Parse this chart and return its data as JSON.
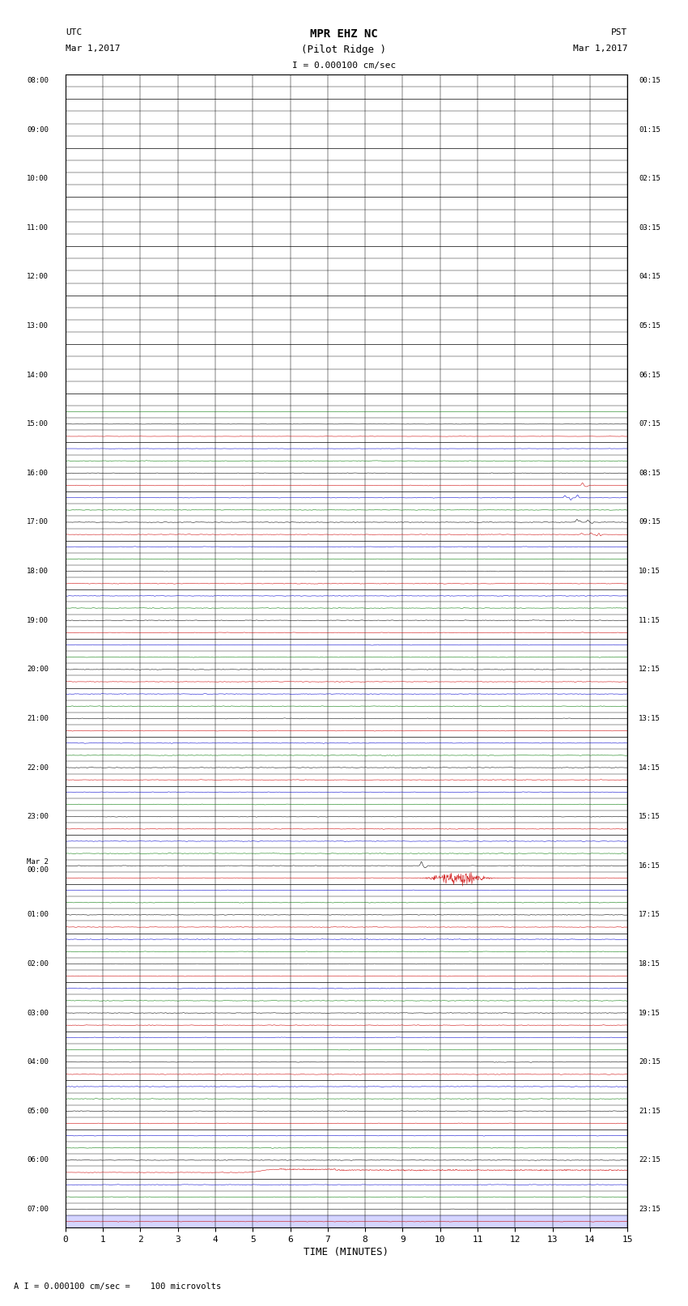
{
  "title_line1": "MPR EHZ NC",
  "title_line2": "(Pilot Ridge )",
  "scale_text": "I = 0.000100 cm/sec",
  "left_label_line1": "UTC",
  "left_label_line2": "Mar 1,2017",
  "right_label_line1": "PST",
  "right_label_line2": "Mar 1,2017",
  "bottom_label": "TIME (MINUTES)",
  "footer_text": "A I = 0.000100 cm/sec =    100 microvolts",
  "xmin": 0,
  "xmax": 15,
  "bg_color": "#ffffff",
  "trace_colors": [
    "#000000",
    "#cc0000",
    "#0000cc",
    "#007700"
  ],
  "fig_width": 8.5,
  "fig_height": 16.13,
  "num_traces": 94,
  "silent_rows": 27,
  "noise_amp_tiny": 0.025,
  "noise_amp_small": 0.045,
  "utc_labels_hourly": [
    [
      "08:00",
      0
    ],
    [
      "09:00",
      4
    ],
    [
      "10:00",
      8
    ],
    [
      "11:00",
      12
    ],
    [
      "12:00",
      16
    ],
    [
      "13:00",
      20
    ],
    [
      "14:00",
      24
    ],
    [
      "15:00",
      28
    ],
    [
      "16:00",
      32
    ],
    [
      "17:00",
      36
    ],
    [
      "18:00",
      40
    ],
    [
      "19:00",
      44
    ],
    [
      "20:00",
      48
    ],
    [
      "21:00",
      52
    ],
    [
      "22:00",
      56
    ],
    [
      "23:00",
      60
    ],
    [
      "Mar 2\n00:00",
      64
    ],
    [
      "01:00",
      68
    ],
    [
      "02:00",
      72
    ],
    [
      "03:00",
      76
    ],
    [
      "04:00",
      80
    ],
    [
      "05:00",
      84
    ],
    [
      "06:00",
      88
    ],
    [
      "07:00",
      92
    ]
  ],
  "pst_labels_hourly": [
    [
      "00:15",
      0
    ],
    [
      "01:15",
      4
    ],
    [
      "02:15",
      8
    ],
    [
      "03:15",
      12
    ],
    [
      "04:15",
      16
    ],
    [
      "05:15",
      20
    ],
    [
      "06:15",
      24
    ],
    [
      "07:15",
      28
    ],
    [
      "08:15",
      32
    ],
    [
      "09:15",
      36
    ],
    [
      "10:15",
      40
    ],
    [
      "11:15",
      44
    ],
    [
      "12:15",
      48
    ],
    [
      "13:15",
      52
    ],
    [
      "14:15",
      56
    ],
    [
      "15:15",
      60
    ],
    [
      "16:15",
      64
    ],
    [
      "17:15",
      68
    ],
    [
      "18:15",
      72
    ],
    [
      "19:15",
      76
    ],
    [
      "20:15",
      80
    ],
    [
      "21:15",
      84
    ],
    [
      "22:15",
      88
    ],
    [
      "23:15",
      92
    ]
  ]
}
